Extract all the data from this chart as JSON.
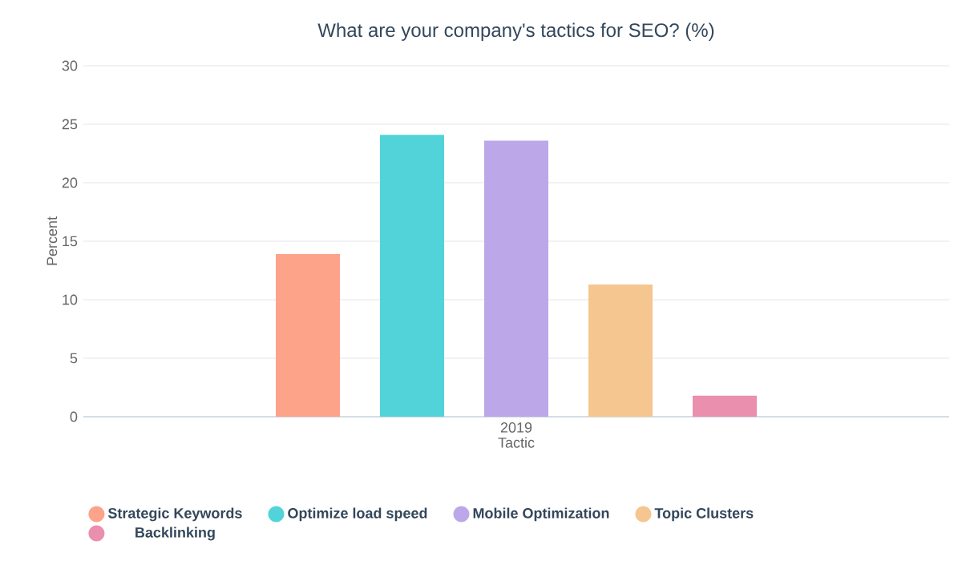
{
  "chart_data": {
    "type": "bar",
    "title": "What are your company's tactics for SEO? (%)",
    "xlabel": "Tactic",
    "ylabel": "Percent",
    "categories": [
      "2019"
    ],
    "series": [
      {
        "name": "Strategic Keywords",
        "color": "#fca38a",
        "values": [
          13.9
        ]
      },
      {
        "name": "Optimize load speed",
        "color": "#52d3d9",
        "values": [
          24.1
        ]
      },
      {
        "name": "Mobile Optimization",
        "color": "#bca8e8",
        "values": [
          23.6
        ]
      },
      {
        "name": "Topic Clusters",
        "color": "#f5c68f",
        "values": [
          11.3
        ]
      },
      {
        "name": "Backlinking",
        "color": "#ea8fae",
        "values": [
          1.8
        ]
      }
    ],
    "ylim": [
      0,
      30
    ],
    "yticks": [
      0,
      5,
      10,
      15,
      20,
      25,
      30
    ],
    "grid": "y",
    "legend": "bottom"
  }
}
